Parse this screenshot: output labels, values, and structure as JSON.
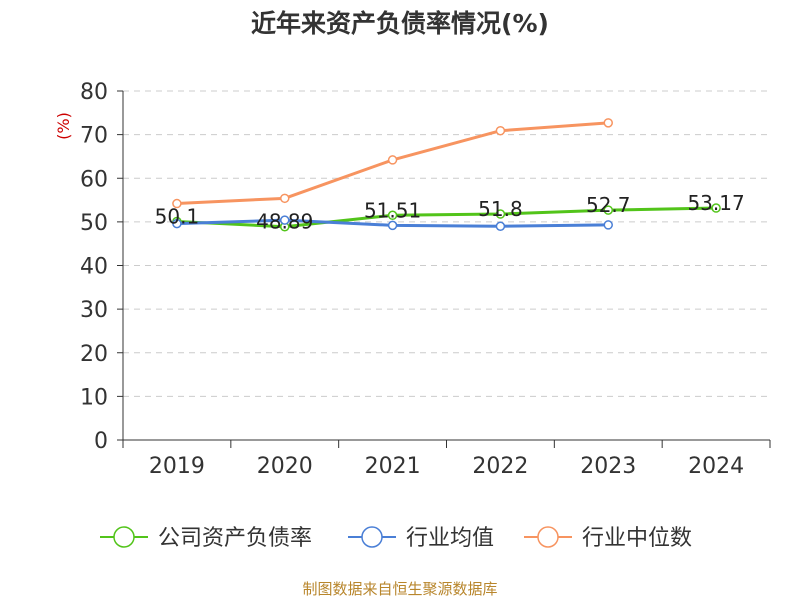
{
  "chart_data": {
    "type": "line",
    "title": "近年来资产负债率情况(%)",
    "ylabel": "(%)",
    "xlabel": "",
    "categories": [
      "2019",
      "2020",
      "2021",
      "2022",
      "2023",
      "2024"
    ],
    "ylim": [
      0,
      80
    ],
    "yticks": [
      0,
      10,
      20,
      30,
      40,
      50,
      60,
      70,
      80
    ],
    "grid": true,
    "legend_position": "bottom",
    "series": [
      {
        "name": "公司资产负债率",
        "color": "#52c41a",
        "values": [
          50.1,
          48.89,
          51.51,
          51.8,
          52.7,
          53.17
        ],
        "data_labels": [
          "50.1",
          "48.89",
          "51.51",
          "51.8",
          "52.7",
          "53.17"
        ]
      },
      {
        "name": "行业均值",
        "color": "#4a7fd6",
        "values": [
          49.6,
          50.4,
          49.2,
          49.0,
          49.3,
          null
        ]
      },
      {
        "name": "行业中位数",
        "color": "#f79460",
        "values": [
          54.2,
          55.4,
          64.2,
          70.9,
          72.7,
          null
        ]
      }
    ]
  },
  "source_note": "制图数据来自恒生聚源数据库",
  "colors": {
    "axis": "#333333",
    "grid": "#cccccc",
    "ylabel": "#cc0000"
  }
}
